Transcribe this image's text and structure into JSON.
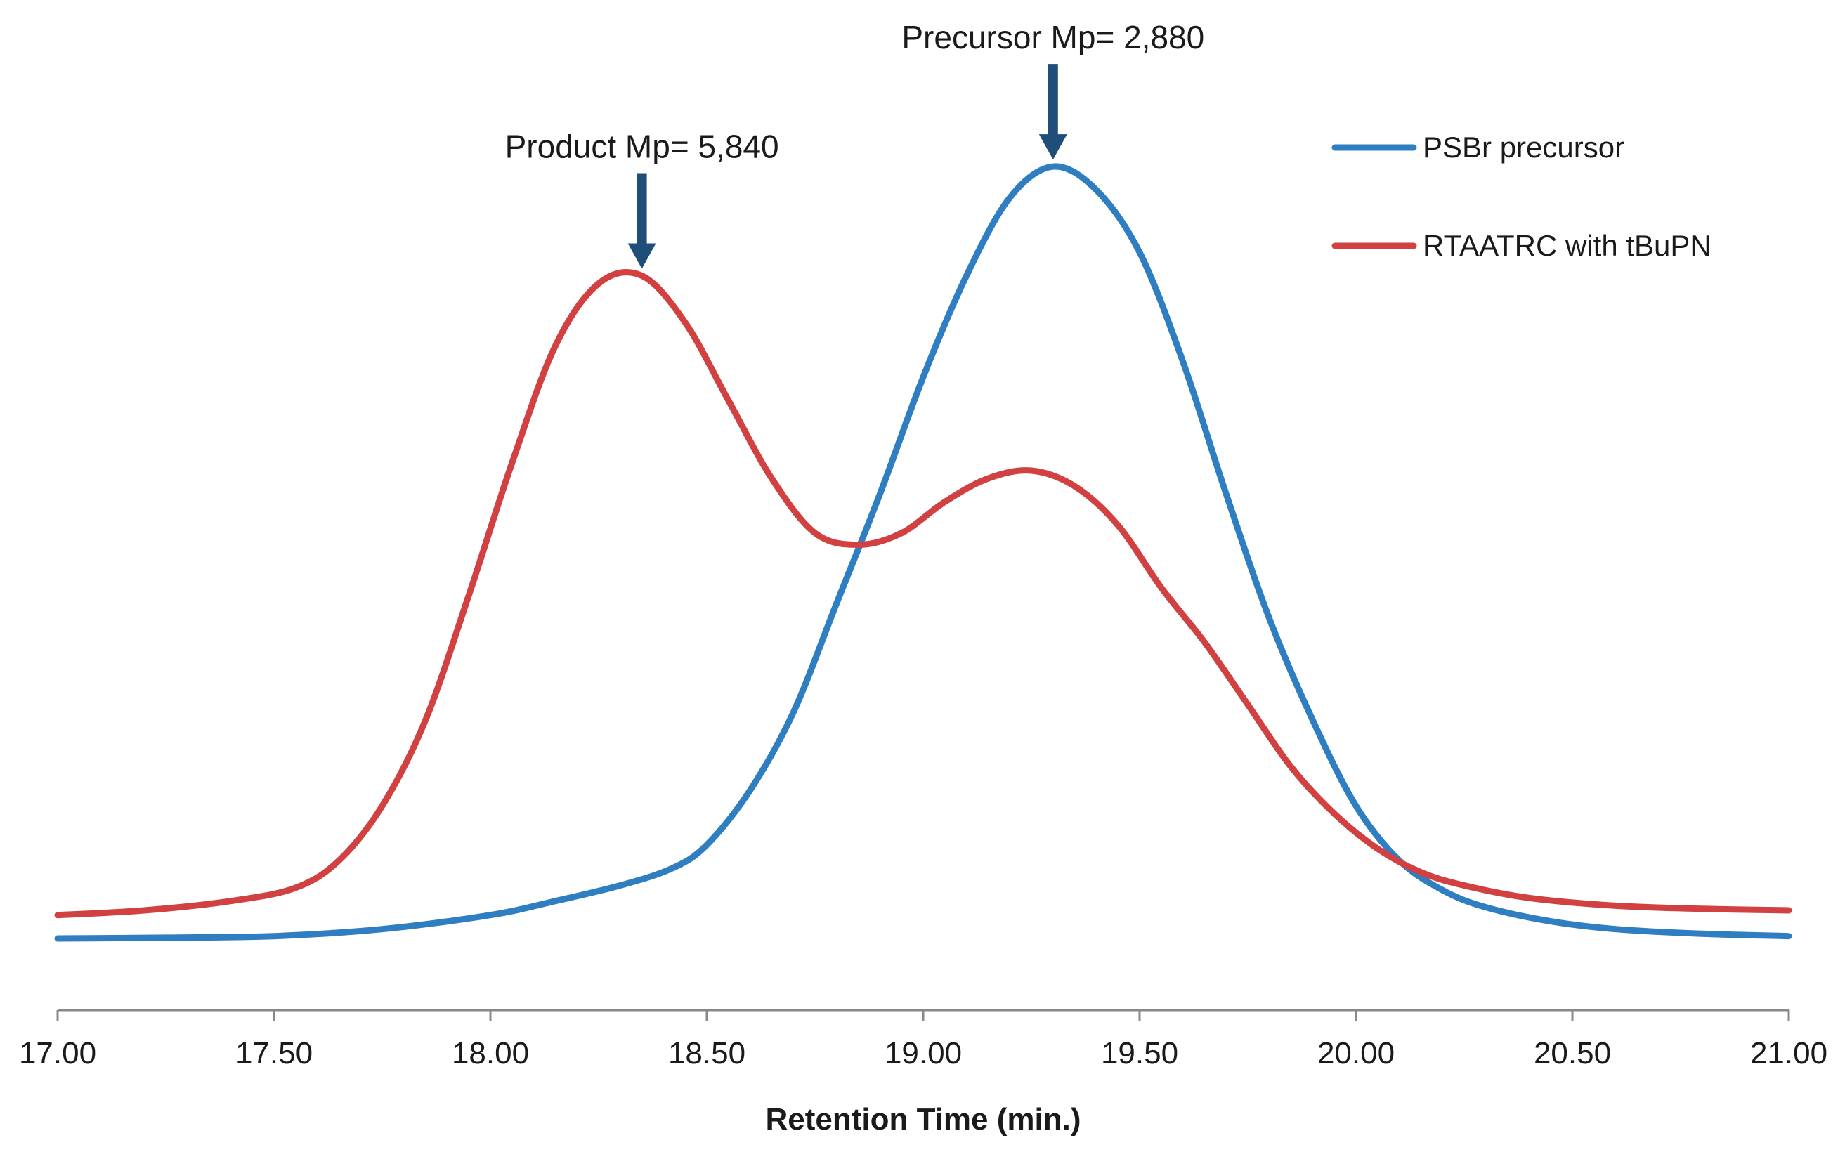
{
  "chart_data": {
    "type": "line",
    "title": "",
    "xlabel": "Retention Time (min.)",
    "ylabel": "",
    "xlim": [
      17.0,
      21.0
    ],
    "ylim": [
      0,
      1.0
    ],
    "xticks": [
      "17.00",
      "17.50",
      "18.00",
      "18.50",
      "19.00",
      "19.50",
      "20.00",
      "20.50",
      "21.00"
    ],
    "grid": false,
    "legend_position": "top-right",
    "series": [
      {
        "name": "PSBr precursor",
        "color": "#2E7EC1",
        "x": [
          17.0,
          17.25,
          17.5,
          17.75,
          18.0,
          18.15,
          18.3,
          18.42,
          18.5,
          18.6,
          18.7,
          18.8,
          18.9,
          19.0,
          19.1,
          19.2,
          19.3,
          19.4,
          19.5,
          19.6,
          19.7,
          19.8,
          19.9,
          20.0,
          20.1,
          20.2,
          20.3,
          20.45,
          20.6,
          20.8,
          21.0
        ],
        "y": [
          0.0,
          0.001,
          0.003,
          0.012,
          0.03,
          0.048,
          0.068,
          0.09,
          0.12,
          0.19,
          0.29,
          0.43,
          0.57,
          0.72,
          0.85,
          0.95,
          0.99,
          0.96,
          0.88,
          0.74,
          0.57,
          0.41,
          0.28,
          0.17,
          0.1,
          0.062,
          0.04,
          0.022,
          0.012,
          0.006,
          0.003
        ]
      },
      {
        "name": "RTAATRC with tBuPN",
        "color": "#D24141",
        "x": [
          17.0,
          17.2,
          17.4,
          17.55,
          17.65,
          17.75,
          17.85,
          17.95,
          18.05,
          18.15,
          18.25,
          18.35,
          18.45,
          18.55,
          18.65,
          18.75,
          18.85,
          18.95,
          19.05,
          19.15,
          19.25,
          19.35,
          19.45,
          19.55,
          19.65,
          19.75,
          19.85,
          19.95,
          20.05,
          20.15,
          20.25,
          20.4,
          20.6,
          20.8,
          21.0
        ],
        "y": [
          0.03,
          0.036,
          0.048,
          0.065,
          0.1,
          0.17,
          0.28,
          0.44,
          0.61,
          0.76,
          0.84,
          0.85,
          0.79,
          0.69,
          0.59,
          0.52,
          0.505,
          0.52,
          0.56,
          0.59,
          0.6,
          0.58,
          0.53,
          0.45,
          0.38,
          0.3,
          0.22,
          0.16,
          0.115,
          0.085,
          0.068,
          0.052,
          0.042,
          0.038,
          0.036
        ]
      }
    ],
    "annotations": [
      {
        "text": "Product Mp= 5,840",
        "x": 18.35,
        "y": 0.85,
        "arrow": true
      },
      {
        "text": "Precursor Mp= 2,880",
        "x": 19.3,
        "y": 0.99,
        "arrow": true
      }
    ],
    "arrow_color": "#1F4E79"
  }
}
